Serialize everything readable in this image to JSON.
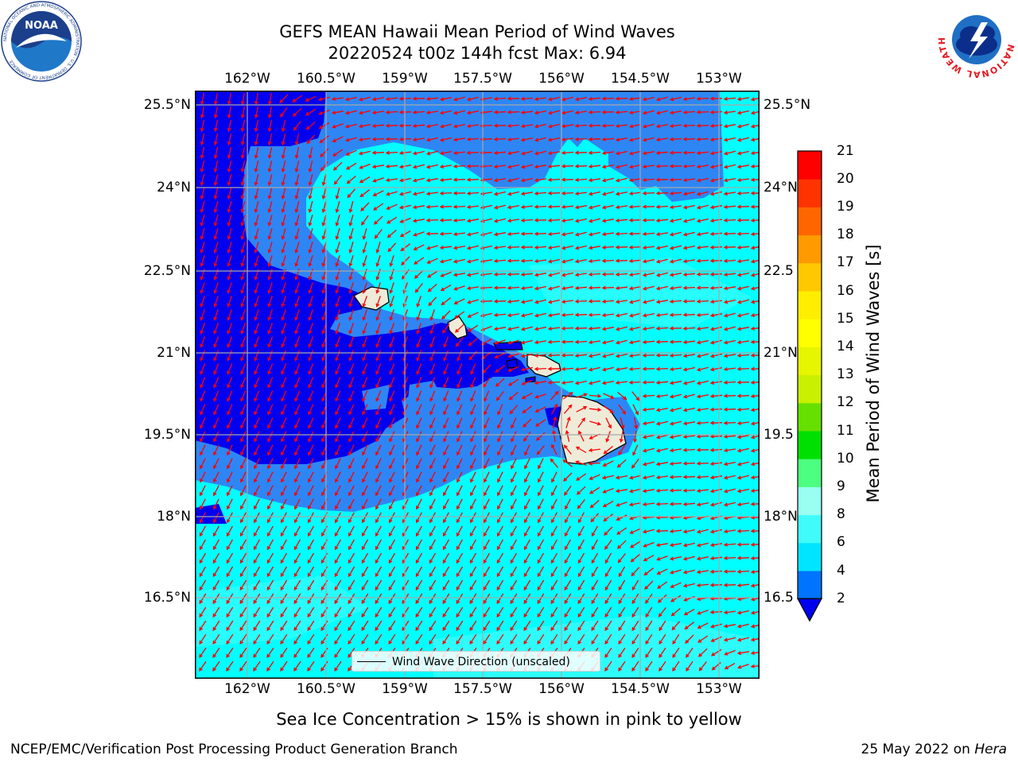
{
  "title": {
    "line1": "GEFS MEAN Hawaii Mean Period of Wind Waves",
    "line2": "20220524 t00z 144h fcst   Max: 6.94"
  },
  "map": {
    "lon_labels": [
      "162°W",
      "160.5°W",
      "159°W",
      "157.5°W",
      "156°W",
      "154.5°W",
      "153°W"
    ],
    "lat_labels_left": [
      "25.5°N",
      "24°N",
      "22.5°N",
      "21°N",
      "19.5°N",
      "18°N",
      "16.5°N"
    ],
    "lat_labels_right": [
      "25.5°N",
      "24°N",
      "22.5",
      "21°N",
      "19.5",
      "18°N",
      "16.5"
    ],
    "vector_color": "#ff0000",
    "land_color": "#efebd9"
  },
  "legend": {
    "label": "Wind Wave Direction (unscaled)"
  },
  "colorbar": {
    "label": "Mean Period of Wind Waves [s]",
    "ticks": [
      "2",
      "4",
      "6",
      "8",
      "9",
      "10",
      "11",
      "12",
      "13",
      "14",
      "15",
      "16",
      "17",
      "18",
      "19",
      "20",
      "21"
    ],
    "colors": [
      "#0074ff",
      "#00e5ff",
      "#41fbfb",
      "#99fff1",
      "#4dff80",
      "#00e000",
      "#66e000",
      "#c8f000",
      "#e6f500",
      "#ffff00",
      "#ffee00",
      "#ffc800",
      "#ff9a00",
      "#ff6600",
      "#ff3300",
      "#ff0000"
    ],
    "under_color": "#0000ee"
  },
  "field_colors": {
    "deep": "#0000ee",
    "mid": "#2e86f4",
    "light": "#00ffff",
    "lighter": "#41fbfb"
  },
  "note": "Sea Ice Concentration > 15% is shown in pink to yellow",
  "footer": {
    "left": "NCEP/EMC/Verification Post Processing Product Generation Branch",
    "date": "25 May 2022 on ",
    "machine": "Hera"
  },
  "logos": {
    "noaa_text": "NOAA",
    "noaa_ring": "NATIONAL OCEANIC AND ATMOSPHERIC ADMINISTRATION · U.S. DEPARTMENT OF COMMERCE",
    "nws_ring": "NATIONAL WEATHER SERVICE"
  }
}
